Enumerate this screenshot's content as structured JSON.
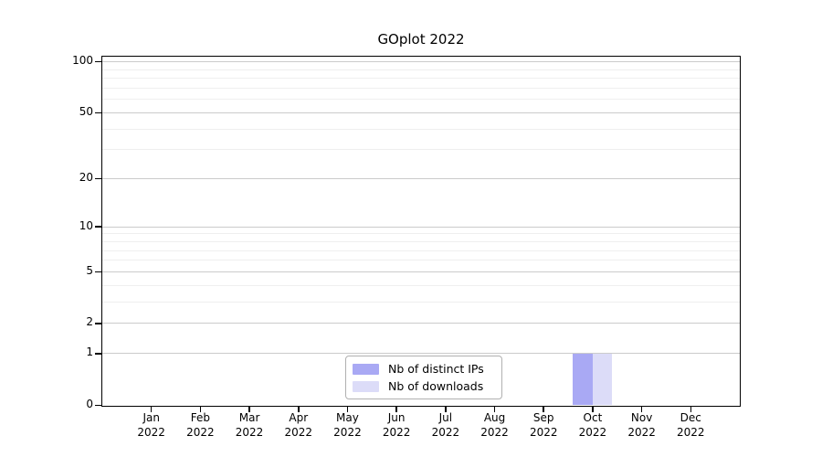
{
  "chart_data": {
    "type": "bar",
    "title": "GOplot 2022",
    "categories": [
      "Jan",
      "Feb",
      "Mar",
      "Apr",
      "May",
      "Jun",
      "Jul",
      "Aug",
      "Sep",
      "Oct",
      "Nov",
      "Dec"
    ],
    "category_year": "2022",
    "series": [
      {
        "name": "Nb of distinct IPs",
        "color": "#a9a9f4",
        "values": [
          0,
          0,
          0,
          0,
          0,
          0,
          0,
          0,
          0,
          1,
          0,
          0
        ]
      },
      {
        "name": "Nb of downloads",
        "color": "#dcdcf8",
        "values": [
          0,
          0,
          0,
          0,
          0,
          0,
          0,
          0,
          0,
          1,
          0,
          0
        ]
      }
    ],
    "y_axis": {
      "scale": "log1p",
      "max": 100,
      "ticks": [
        0,
        1,
        2,
        5,
        10,
        20,
        50,
        100
      ],
      "minor_ticks": [
        3,
        4,
        6,
        7,
        8,
        9,
        30,
        40,
        60,
        70,
        80,
        90
      ]
    },
    "x_axis": {
      "tick_count": 12
    },
    "grid": {
      "major_color": "#cbcbcb",
      "minor_color": "#efefef"
    },
    "legend": {
      "position": "lower-center",
      "labels": [
        "Nb of distinct IPs",
        "Nb of downloads"
      ]
    },
    "background": "#ffffff"
  }
}
